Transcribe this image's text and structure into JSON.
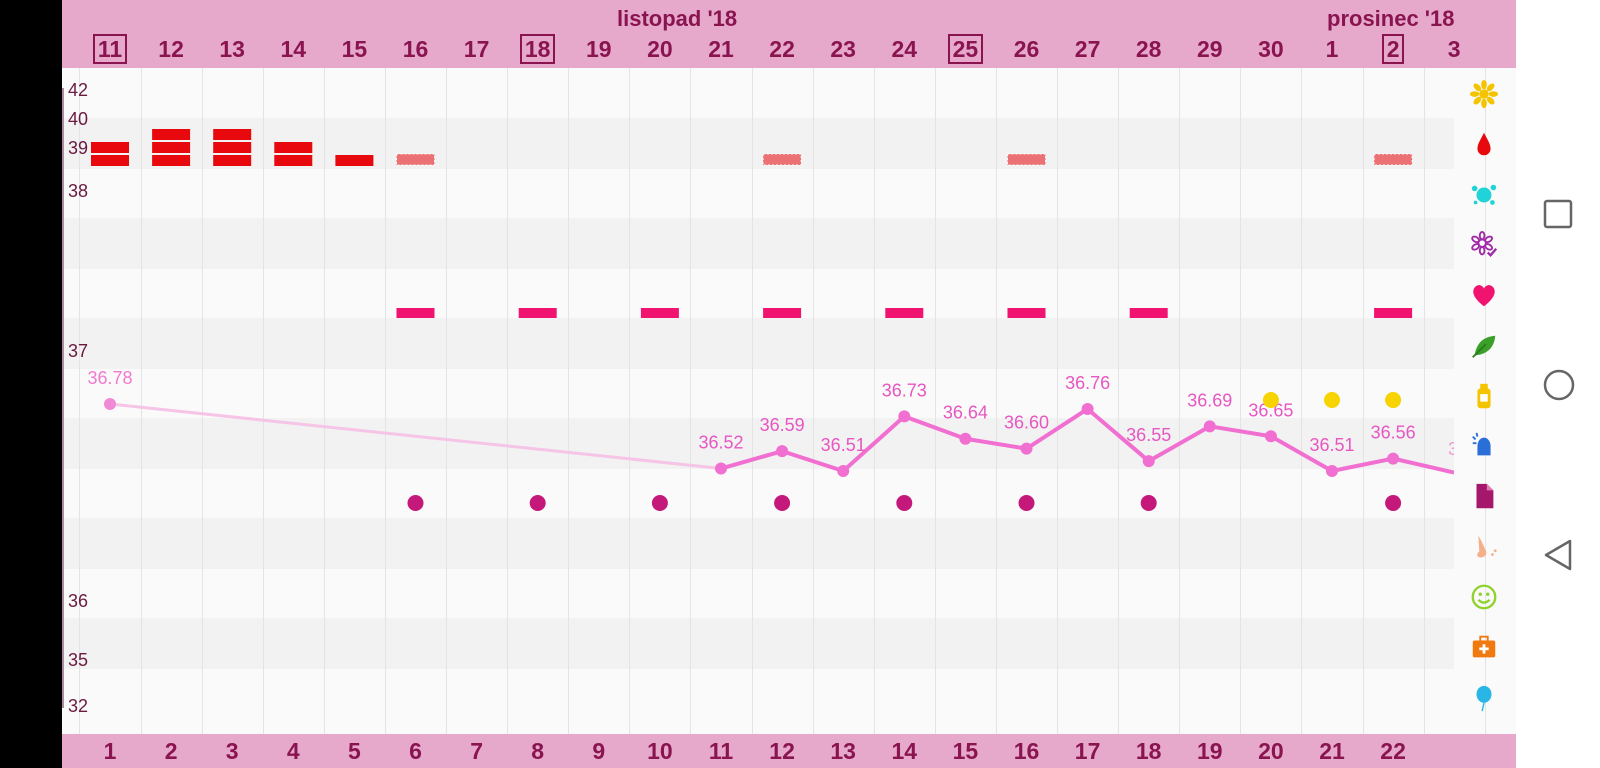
{
  "header": {
    "month_left": "listopad '18",
    "month_right": "prosinec '18",
    "days_top": [
      {
        "label": "11",
        "boxed": true
      },
      {
        "label": "12",
        "boxed": false
      },
      {
        "label": "13",
        "boxed": false
      },
      {
        "label": "14",
        "boxed": false
      },
      {
        "label": "15",
        "boxed": false
      },
      {
        "label": "16",
        "boxed": false
      },
      {
        "label": "17",
        "boxed": false
      },
      {
        "label": "18",
        "boxed": true
      },
      {
        "label": "19",
        "boxed": false
      },
      {
        "label": "20",
        "boxed": false
      },
      {
        "label": "21",
        "boxed": false
      },
      {
        "label": "22",
        "boxed": false
      },
      {
        "label": "23",
        "boxed": false
      },
      {
        "label": "24",
        "boxed": false
      },
      {
        "label": "25",
        "boxed": true
      },
      {
        "label": "26",
        "boxed": false
      },
      {
        "label": "27",
        "boxed": false
      },
      {
        "label": "28",
        "boxed": false
      },
      {
        "label": "29",
        "boxed": false
      },
      {
        "label": "30",
        "boxed": false
      },
      {
        "label": "1",
        "boxed": false
      },
      {
        "label": "2",
        "boxed": true
      },
      {
        "label": "3",
        "boxed": false
      }
    ]
  },
  "footer": {
    "cycle_days": [
      "1",
      "2",
      "3",
      "4",
      "5",
      "6",
      "7",
      "8",
      "9",
      "10",
      "11",
      "12",
      "13",
      "14",
      "15",
      "16",
      "17",
      "18",
      "19",
      "20",
      "21",
      "22"
    ]
  },
  "axis": {
    "labels": [
      "42",
      "40",
      "39",
      "38",
      "37",
      "36",
      "35",
      "32"
    ]
  },
  "chart_data": {
    "type": "line",
    "series": [
      {
        "values": [
          {
            "day": 1,
            "temp": 36.78,
            "label": "36.78",
            "faded": true
          },
          {
            "day": 11,
            "temp": 36.52,
            "label": "36.52"
          },
          {
            "day": 12,
            "temp": 36.59,
            "label": "36.59"
          },
          {
            "day": 13,
            "temp": 36.51,
            "label": "36.51"
          },
          {
            "day": 14,
            "temp": 36.73,
            "label": "36.73"
          },
          {
            "day": 15,
            "temp": 36.64,
            "label": "36.64"
          },
          {
            "day": 16,
            "temp": 36.6,
            "label": "36.60"
          },
          {
            "day": 17,
            "temp": 36.76,
            "label": "36.76"
          },
          {
            "day": 18,
            "temp": 36.55,
            "label": "36.55"
          },
          {
            "day": 19,
            "temp": 36.69,
            "label": "36.69"
          },
          {
            "day": 20,
            "temp": 36.65,
            "label": "36.65"
          },
          {
            "day": 21,
            "temp": 36.51,
            "label": "36.51"
          },
          {
            "day": 22,
            "temp": 36.56,
            "label": "36.56"
          }
        ]
      }
    ],
    "bleeding": [
      {
        "day": 1,
        "level": 2
      },
      {
        "day": 2,
        "level": 3
      },
      {
        "day": 3,
        "level": 3
      },
      {
        "day": 4,
        "level": 2
      },
      {
        "day": 5,
        "level": 1
      },
      {
        "day": 6,
        "level": 0
      },
      {
        "day": 12,
        "level": 0
      },
      {
        "day": 16,
        "level": 0
      },
      {
        "day": 22,
        "level": 0
      }
    ],
    "intercourse_days": [
      6,
      8,
      10,
      12,
      14,
      16,
      18,
      22
    ],
    "note_days": [
      6,
      8,
      10,
      12,
      14,
      16,
      18,
      22
    ],
    "pill_days": [
      20,
      21,
      22
    ],
    "colors": {
      "line": "#f06fd0",
      "line_faded": "#f6c4e6",
      "bleeding": "#e8090e",
      "intercourse": "#f0136f",
      "note_dot": "#c4197a",
      "pill_dot": "#f7d400",
      "header_bg": "#e6a9cb",
      "header_text": "#8a1450"
    }
  },
  "symbols": [
    {
      "icon": "sun-flower-icon",
      "color": "#f5c400"
    },
    {
      "icon": "blood-drop-icon",
      "color": "#e8090e"
    },
    {
      "icon": "splash-icon",
      "color": "#1fd3d8"
    },
    {
      "icon": "flower-check-icon",
      "color": "#a02aa8"
    },
    {
      "icon": "heart-icon",
      "color": "#f0136f"
    },
    {
      "icon": "leaf-icon",
      "color": "#3aa02a"
    },
    {
      "icon": "bottle-icon",
      "color": "#f5c400"
    },
    {
      "icon": "bell-icon",
      "color": "#2a6fd8"
    },
    {
      "icon": "document-icon",
      "color": "#a4176a"
    },
    {
      "icon": "nose-icon",
      "color": "#f5b08a"
    },
    {
      "icon": "smiley-icon",
      "color": "#8fd32a"
    },
    {
      "icon": "medkit-icon",
      "color": "#f07a10"
    },
    {
      "icon": "balloon-icon",
      "color": "#29b6e6"
    },
    {
      "icon": "cycle-ring-icon",
      "color": "#7a1450"
    }
  ]
}
